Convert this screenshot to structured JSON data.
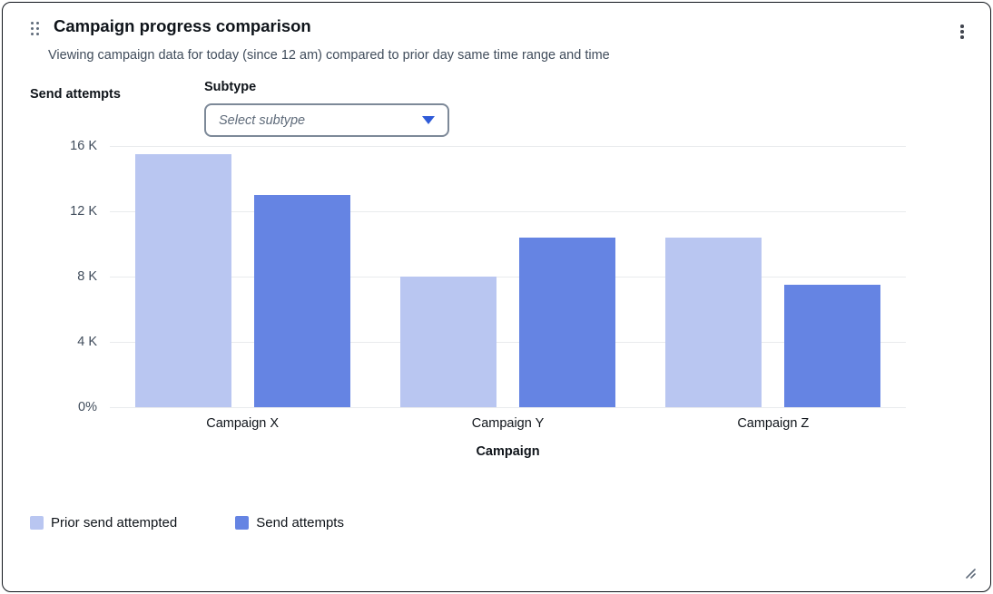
{
  "widget": {
    "title": "Campaign progress comparison",
    "subtitle": "Viewing campaign data for today (since 12 am) compared to prior day same time range and time"
  },
  "controls": {
    "subtype_label": "Subtype",
    "subtype_placeholder": "Select subtype"
  },
  "colors": {
    "accent_caret": "#2f5bd8",
    "prior_series": "#b9c6f1",
    "current_series": "#6584e3",
    "gridline": "#e9ebed"
  },
  "chart_data": {
    "type": "bar",
    "title": "Campaign progress comparison",
    "xlabel": "Campaign",
    "ylabel": "Send attempts",
    "ylim": [
      0,
      16000
    ],
    "grid": true,
    "legend_position": "bottom",
    "yticks": [
      {
        "value": 0,
        "label": "0%"
      },
      {
        "value": 4000,
        "label": "4 K"
      },
      {
        "value": 8000,
        "label": "8 K"
      },
      {
        "value": 12000,
        "label": "12 K"
      },
      {
        "value": 16000,
        "label": "16 K"
      }
    ],
    "categories": [
      "Campaign X",
      "Campaign Y",
      "Campaign Z"
    ],
    "series": [
      {
        "name": "Prior send attempted",
        "color": "#b9c6f1",
        "values": [
          15500,
          8000,
          10400
        ]
      },
      {
        "name": "Send attempts",
        "color": "#6584e3",
        "values": [
          13000,
          10400,
          7500
        ]
      }
    ]
  }
}
